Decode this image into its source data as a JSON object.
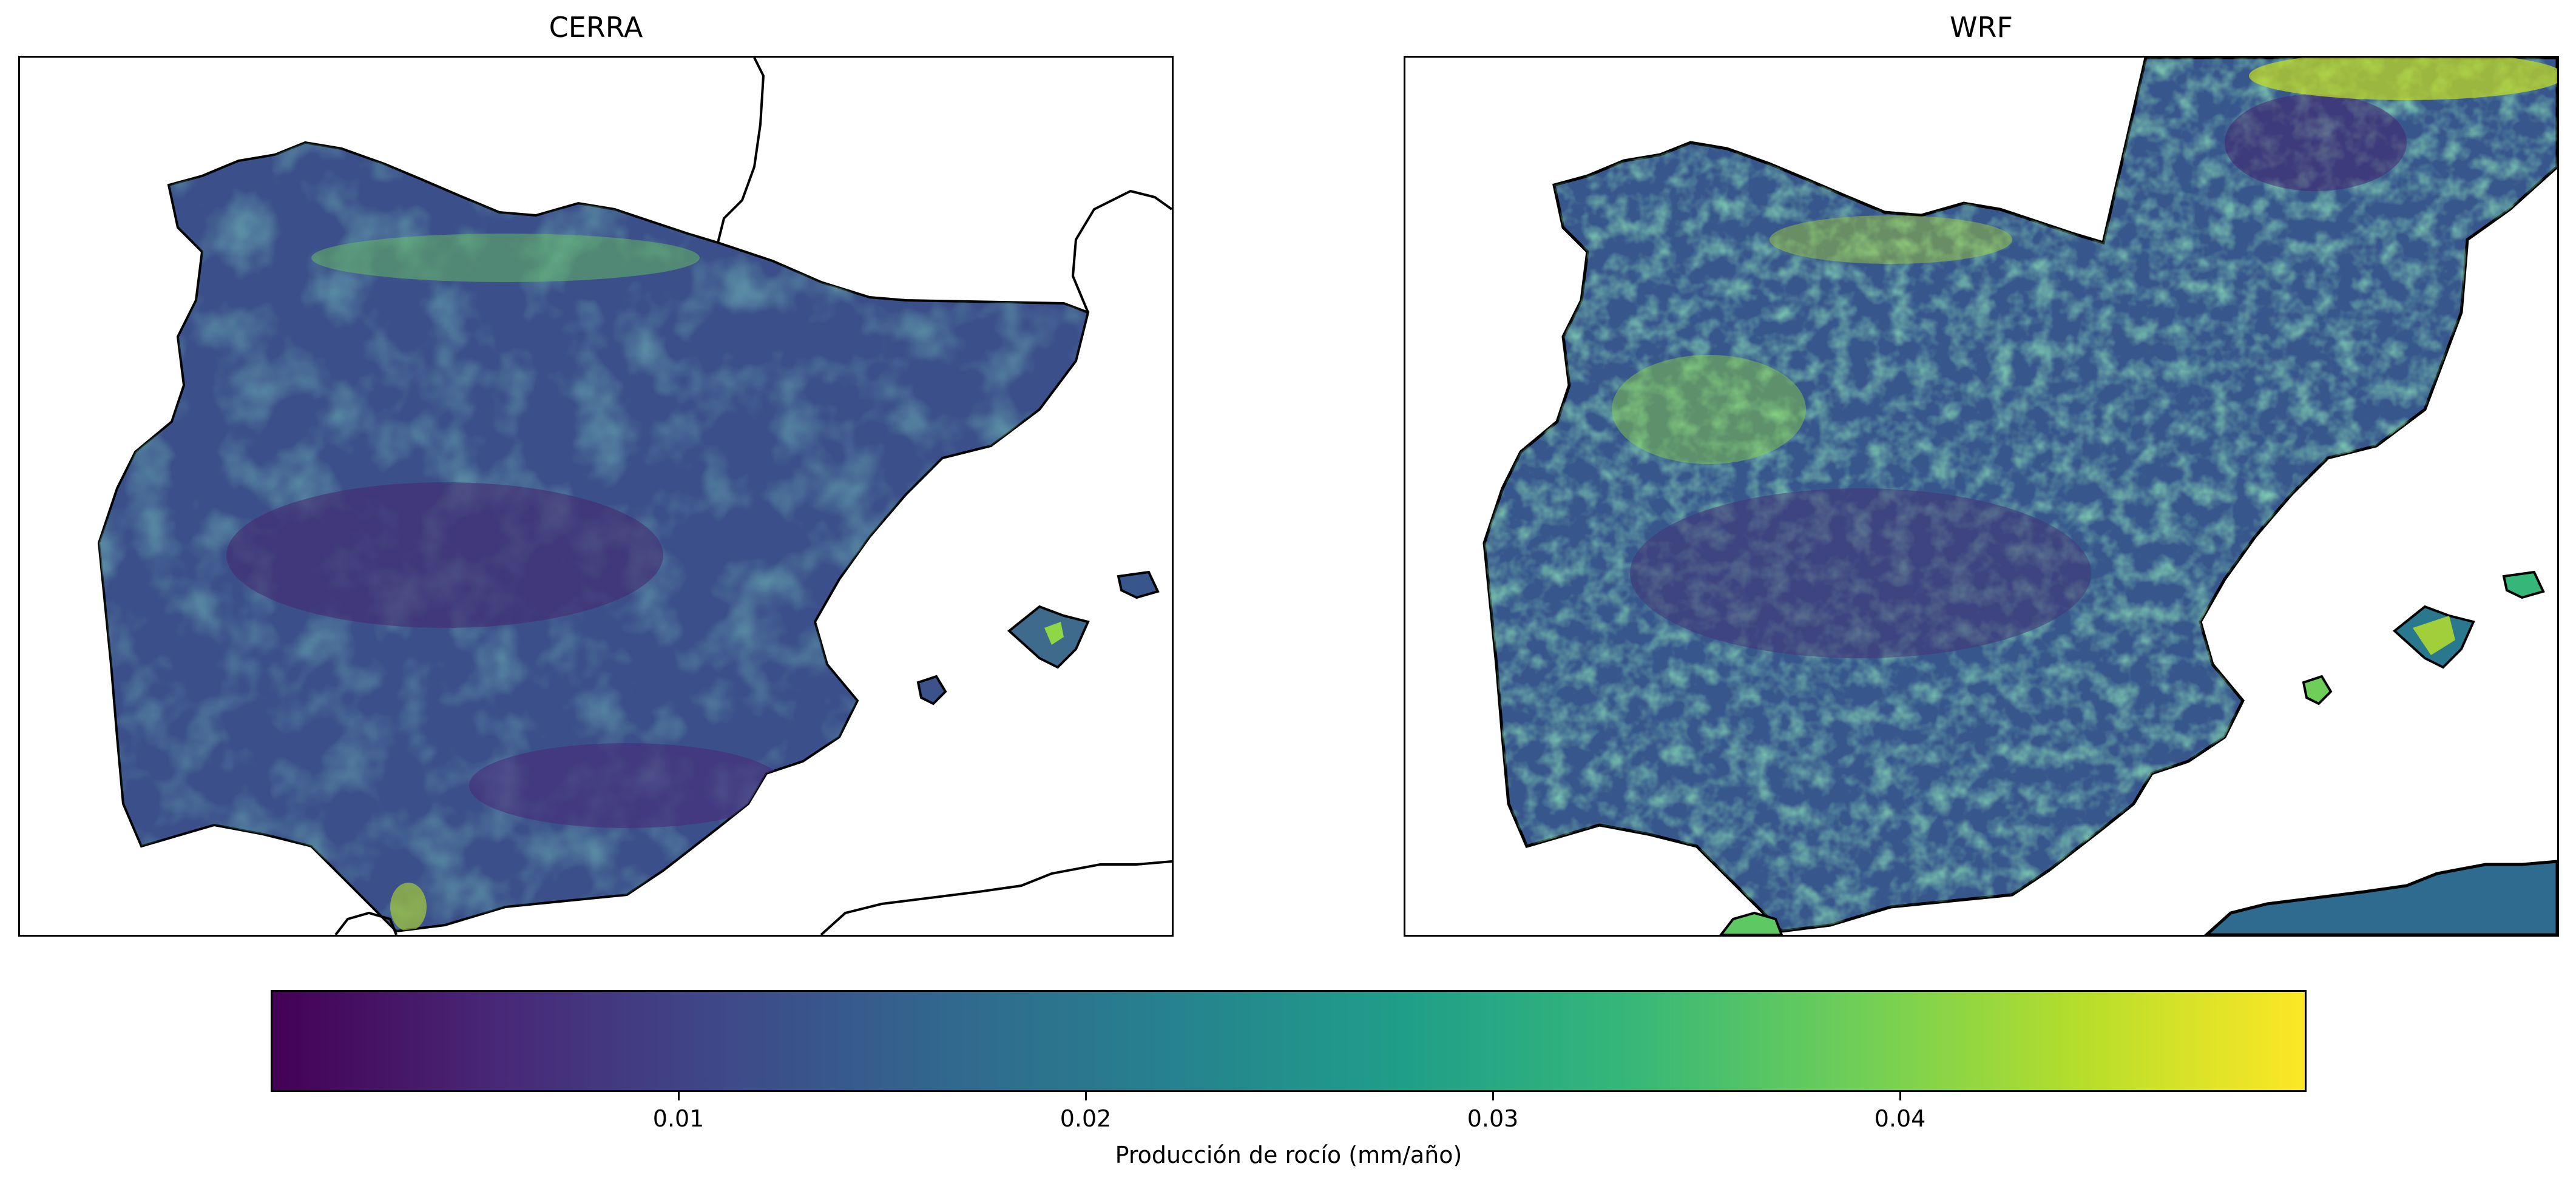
{
  "panels": [
    {
      "title": "CERRA"
    },
    {
      "title": "WRF"
    }
  ],
  "colorbar": {
    "label": "Producción de rocío (mm/año)",
    "ticks": [
      "0.01",
      "0.02",
      "0.03",
      "0.04"
    ],
    "range": [
      0.0,
      0.05
    ],
    "colormap": "viridis",
    "colors": [
      "#440154",
      "#482878",
      "#3e4989",
      "#31688e",
      "#26828e",
      "#1f9e89",
      "#35b779",
      "#6ece58",
      "#b5de2b",
      "#fde725"
    ]
  },
  "chart_data": [
    {
      "type": "heatmap",
      "title": "CERRA",
      "colorbar_label": "Producción de rocío (mm/año)",
      "value_range": [
        0.0,
        0.05
      ],
      "typical_range": [
        0.005,
        0.035
      ],
      "region": "Iberian Peninsula and Balearic Islands"
    },
    {
      "type": "heatmap",
      "title": "WRF",
      "colorbar_label": "Producción de rocío (mm/año)",
      "value_range": [
        0.0,
        0.05
      ],
      "typical_range": [
        0.005,
        0.05
      ],
      "region": "Iberian Peninsula, Balearic Islands, southern France and northern Africa"
    }
  ]
}
